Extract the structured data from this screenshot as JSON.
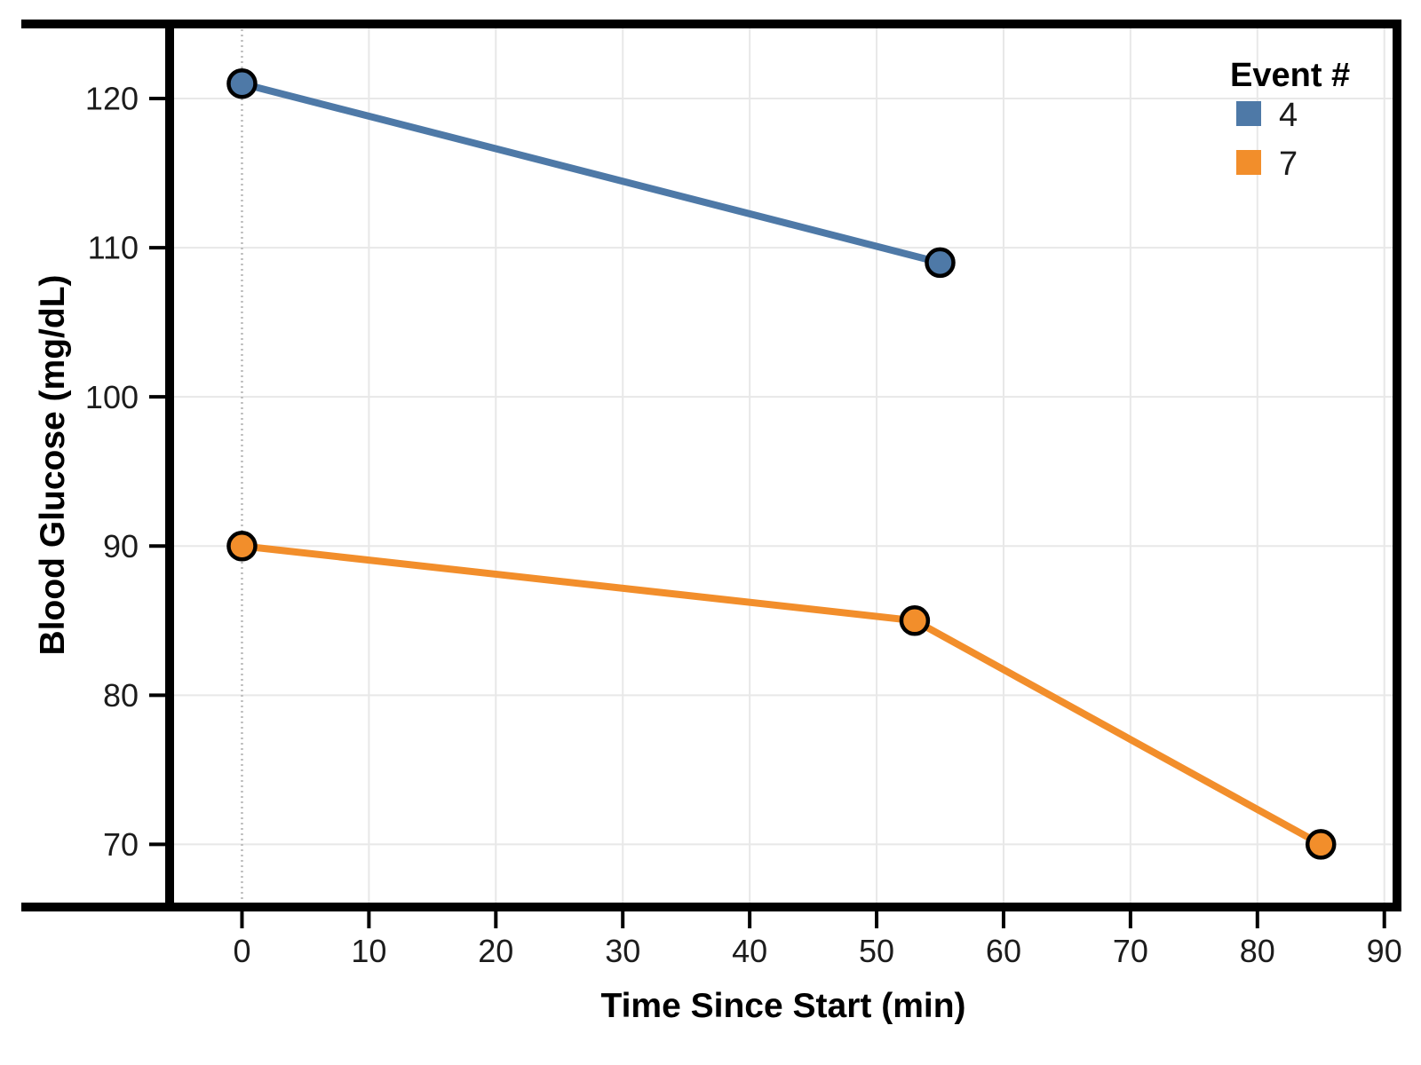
{
  "chart_data": {
    "type": "line",
    "title": "",
    "xlabel": "Time Since Start (min)",
    "ylabel": "Blood Glucose (mg/dL)",
    "x_ticks": [
      0,
      10,
      20,
      30,
      40,
      50,
      60,
      70,
      80,
      90
    ],
    "y_ticks": [
      70,
      80,
      90,
      100,
      110,
      120
    ],
    "xlim": [
      -5.7,
      91
    ],
    "ylim": [
      65.8,
      125
    ],
    "grid": true,
    "grid_color": "#e8e8e8",
    "reference_rule": {
      "x": 0,
      "style": "dotted",
      "color": "#bababa"
    },
    "legend_position": "inside-top-right",
    "marker_outline": "#000000",
    "series": [
      {
        "name": "4",
        "color": "#4e79a7",
        "points": [
          [
            0,
            121
          ],
          [
            55,
            109
          ]
        ]
      },
      {
        "name": "7",
        "color": "#f28e2b",
        "points": [
          [
            0,
            90
          ],
          [
            53,
            85
          ],
          [
            85,
            70
          ]
        ]
      }
    ]
  },
  "legend": {
    "title": "Event #",
    "entries": [
      {
        "label": "4",
        "color": "#4e79a7"
      },
      {
        "label": "7",
        "color": "#f28e2b"
      }
    ]
  }
}
